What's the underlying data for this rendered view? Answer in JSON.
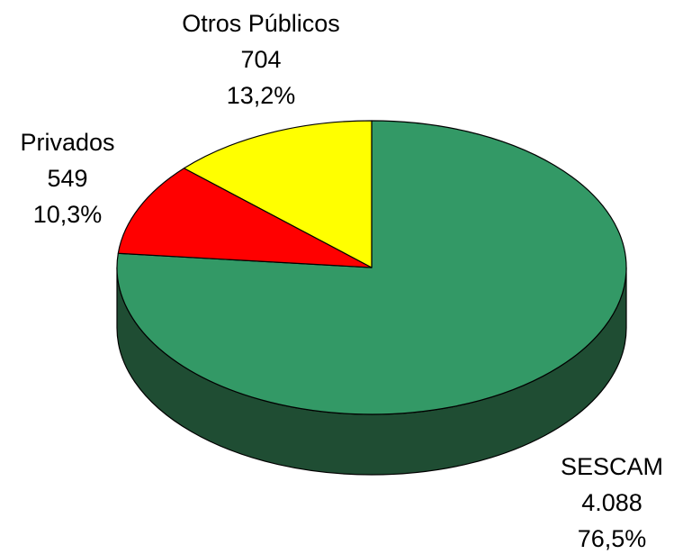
{
  "chart_data": {
    "type": "pie3d",
    "categories": [
      "SESCAM",
      "Privados",
      "Otros Públicos"
    ],
    "values": [
      4088,
      549,
      704
    ],
    "value_labels": [
      "4.088",
      "549",
      "704"
    ],
    "percentages": [
      76.5,
      10.3,
      13.2
    ],
    "percentage_labels": [
      "76,5%",
      "10,3%",
      "13,2%"
    ],
    "colors": [
      "#339966",
      "#ff0000",
      "#ffff00"
    ],
    "side_colors": [
      "#1f4d33",
      "#800000",
      "#808000"
    ]
  }
}
